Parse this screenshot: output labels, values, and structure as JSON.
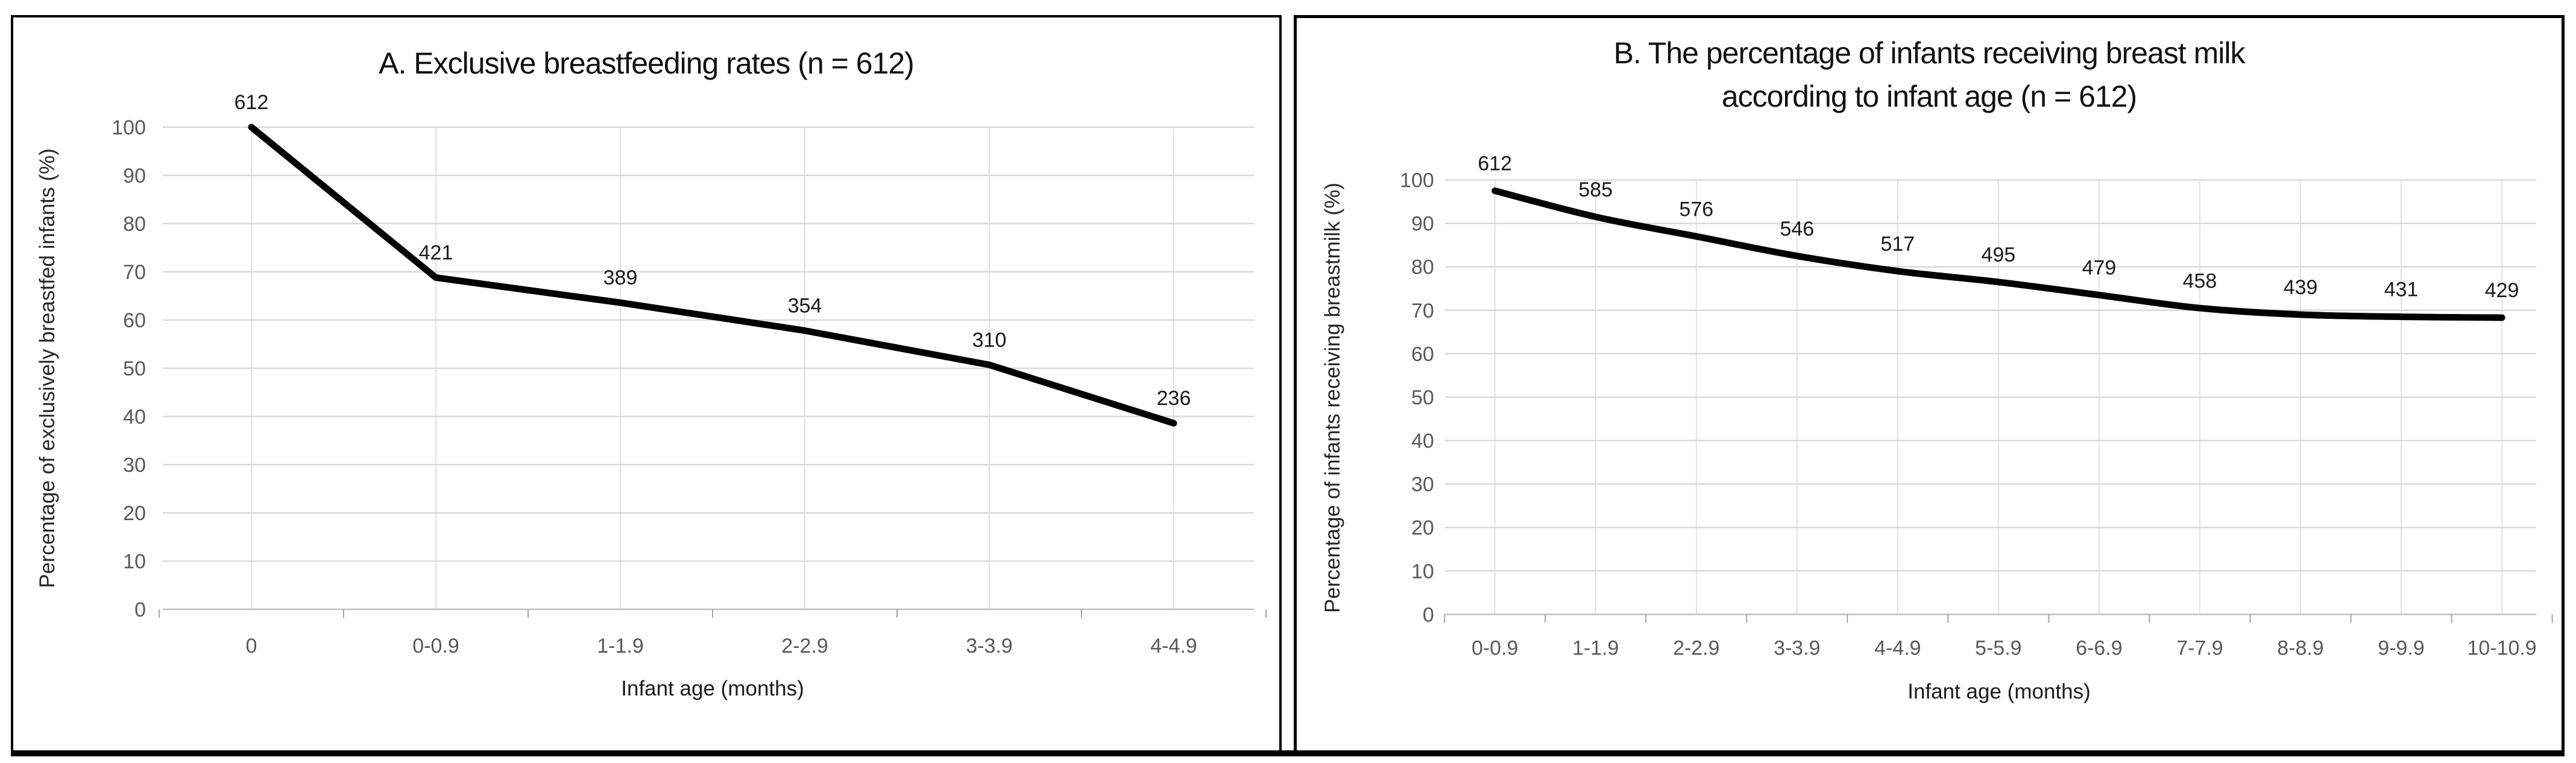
{
  "figure": {
    "background": "#ffffff",
    "panel_border_color": "#000000",
    "bottom_bar_color": "#000000"
  },
  "styles": {
    "gridline_color": "#d9d9d9",
    "axis_line_color": "#bfbfbf",
    "tick_color": "#a6a6a6",
    "tick_label_color": "#595959",
    "data_label_color": "#1a1a1a",
    "title_color": "#111111"
  },
  "chart_data": [
    {
      "type": "line",
      "panel": "A",
      "title": "A. Exclusive breastfeeding rates (n = 612)",
      "title_lines": [
        "A. Exclusive breastfeeding rates (n = 612)"
      ],
      "xlabel": "Infant age (months)",
      "ylabel": "Percentage of exclusively breastfed infants (%)",
      "categories": [
        "0",
        "0-0.9",
        "1-1.9",
        "2-2.9",
        "3-3.9",
        "4-4.9"
      ],
      "values_percent": [
        100,
        68.8,
        63.6,
        57.8,
        50.7,
        38.6
      ],
      "point_labels": [
        "612",
        "421",
        "389",
        "354",
        "310",
        "236"
      ],
      "n_total": 612,
      "ylim": [
        0,
        100
      ],
      "yticks": [
        0,
        10,
        20,
        30,
        40,
        50,
        60,
        70,
        80,
        90,
        100
      ],
      "grid": true,
      "legend": "none",
      "line_color": "#000000",
      "line_width": 11,
      "smooth": false,
      "marker": "none"
    },
    {
      "type": "line",
      "panel": "B",
      "title": "B. The percentage of infants receiving breast milk according to infant age (n = 612)",
      "title_lines": [
        "B. The percentage of infants receiving breast milk",
        "according to infant age (n = 612)"
      ],
      "xlabel": "Infant age (months)",
      "ylabel": "Percentage of infants receiving breastmilk (%)",
      "categories": [
        "0-0.9",
        "1-1.9",
        "2-2.9",
        "3-3.9",
        "4-4.9",
        "5-5.9",
        "6-6.9",
        "7-7.9",
        "8-8.9",
        "9-9.9",
        "10-10.9"
      ],
      "values_percent": [
        97.5,
        91.5,
        87,
        82.5,
        79,
        76.5,
        73.5,
        70.5,
        69,
        68.5,
        68.3
      ],
      "point_labels": [
        "612",
        "585",
        "576",
        "546",
        "517",
        "495",
        "479",
        "458",
        "439",
        "431",
        "429"
      ],
      "n_total": 612,
      "ylim": [
        0,
        100
      ],
      "yticks": [
        0,
        10,
        20,
        30,
        40,
        50,
        60,
        70,
        80,
        90,
        100
      ],
      "grid": true,
      "legend": "none",
      "line_color": "#000000",
      "line_width": 11,
      "smooth": true,
      "marker": "none"
    }
  ]
}
